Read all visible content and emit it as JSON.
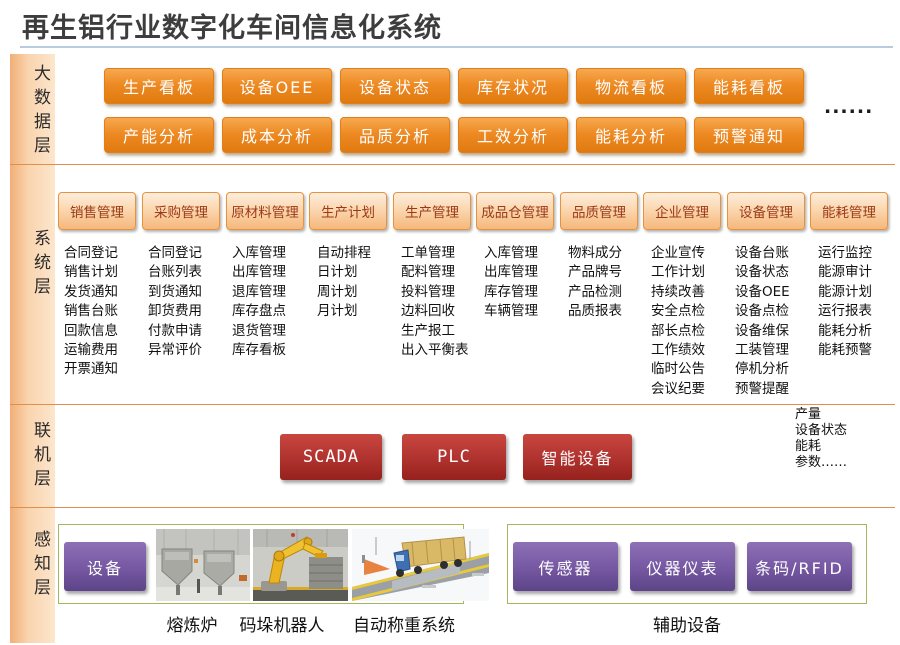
{
  "title": "再生铝行业数字化车间信息化系统",
  "layers": {
    "bigdata": {
      "label": "大数据层",
      "row1": [
        "生产看板",
        "设备OEE",
        "设备状态",
        "库存状况",
        "物流看板",
        "能耗看板"
      ],
      "row2": [
        "产能分析",
        "成本分析",
        "品质分析",
        "工效分析",
        "能耗分析",
        "预警通知"
      ],
      "ellipsis": "......"
    },
    "system": {
      "label": "系统层",
      "columns": [
        {
          "header": "销售管理",
          "items": [
            "合同登记",
            "销售计划",
            "发货通知",
            "销售台账",
            "回款信息",
            "运输费用",
            "开票通知"
          ]
        },
        {
          "header": "采购管理",
          "items": [
            "合同登记",
            "台账列表",
            "到货通知",
            "卸货费用",
            "付款申请",
            "异常评价"
          ]
        },
        {
          "header": "原材料管理",
          "items": [
            "入库管理",
            "出库管理",
            "退库管理",
            "库存盘点",
            "退货管理",
            "库存看板"
          ]
        },
        {
          "header": "生产计划",
          "items": [
            "自动排程",
            "日计划",
            "周计划",
            "月计划"
          ]
        },
        {
          "header": "生产管理",
          "items": [
            "工单管理",
            "配料管理",
            "投料管理",
            "边料回收",
            "生产报工",
            "出入平衡表"
          ]
        },
        {
          "header": "成品仓管理",
          "items": [
            "入库管理",
            "出库管理",
            "库存管理",
            "车辆管理"
          ]
        },
        {
          "header": "品质管理",
          "items": [
            "物料成分",
            "产品牌号",
            "产品检测",
            "品质报表"
          ]
        },
        {
          "header": "企业管理",
          "items": [
            "企业宣传",
            "工作计划",
            "持续改善",
            "安全点检",
            "部长点检",
            "工作绩效",
            "临时公告",
            "会议纪要"
          ]
        },
        {
          "header": "设备管理",
          "items": [
            "设备台账",
            "设备状态",
            "设备OEE",
            "设备点检",
            "设备维保",
            "工装管理",
            "停机分析",
            "预警提醒"
          ]
        },
        {
          "header": "能耗管理",
          "items": [
            "运行监控",
            "能源审计",
            "能源计划",
            "运行报表",
            "能耗分析",
            "能耗预警"
          ]
        }
      ]
    },
    "online": {
      "label": "联机层",
      "buttons": [
        "SCADA",
        "PLC",
        "智能设备"
      ],
      "metrics": [
        "产量",
        "设备状态",
        "能耗",
        "参数……"
      ]
    },
    "perception": {
      "label": "感知层",
      "device_button": "设备",
      "photo_labels": [
        "熔炼炉",
        "码垛机器人",
        "自动称重系统"
      ],
      "aux_buttons": [
        "传感器",
        "仪器仪表",
        "条码/RFID"
      ],
      "aux_label": "辅助设备"
    }
  },
  "colors": {
    "orange_button": "#ee8a24",
    "panel_header_fill": "#f5b87c",
    "panel_header_text": "#9c3a17",
    "red_button": "#b23430",
    "purple_button": "#7a5ca6",
    "green_box_border": "#a2b860",
    "divider": "#e18f4f",
    "sidebar_strip": "#f6c593",
    "title_text": "#3d3d3d",
    "title_rule": "#b9cbdf"
  }
}
